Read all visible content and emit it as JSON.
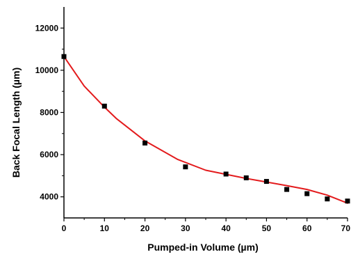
{
  "chart_data": {
    "type": "scatter",
    "xlabel": "Pumped-in Volume (µm)",
    "ylabel": "Back Focal Length (µm)",
    "xlim": [
      0,
      70
    ],
    "ylim": [
      3000,
      13000
    ],
    "x_ticks": [
      0,
      10,
      20,
      30,
      40,
      50,
      60,
      70
    ],
    "y_ticks": [
      4000,
      6000,
      8000,
      10000,
      12000
    ],
    "grid": false,
    "legend": "none",
    "series": [
      {
        "type": "scatter",
        "color": "#000000",
        "points": [
          [
            0,
            10650
          ],
          [
            10,
            8300
          ],
          [
            20,
            6550
          ],
          [
            30,
            5420
          ],
          [
            40,
            5080
          ],
          [
            45,
            4900
          ],
          [
            50,
            4730
          ],
          [
            55,
            4350
          ],
          [
            60,
            4150
          ],
          [
            65,
            3900
          ],
          [
            70,
            3800
          ]
        ]
      },
      {
        "type": "line",
        "color": "#e31a1c",
        "points": [
          [
            0,
            10650
          ],
          [
            5,
            9250
          ],
          [
            10,
            8250
          ],
          [
            13,
            7700
          ],
          [
            20,
            6650
          ],
          [
            28,
            5780
          ],
          [
            35,
            5260
          ],
          [
            45,
            4870
          ],
          [
            55,
            4530
          ],
          [
            60,
            4350
          ],
          [
            65,
            4080
          ],
          [
            70,
            3700
          ]
        ]
      }
    ]
  }
}
